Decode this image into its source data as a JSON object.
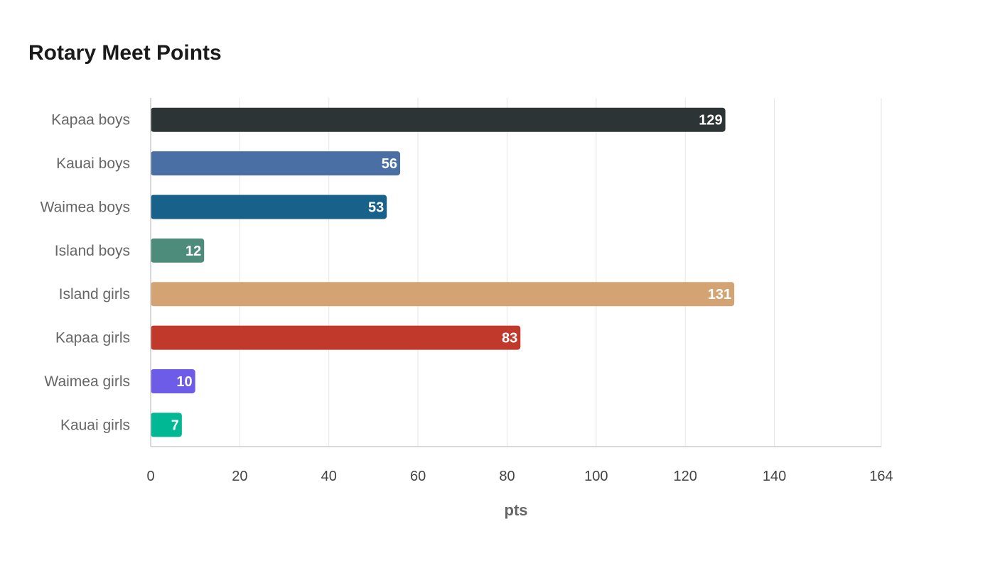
{
  "chart_data": {
    "type": "bar",
    "orientation": "horizontal",
    "title": "Rotary Meet Points",
    "xlabel": "pts",
    "ylabel": "",
    "categories": [
      "Kapaa boys",
      "Kauai boys",
      "Waimea boys",
      "Island boys",
      "Island girls",
      "Kapaa girls",
      "Waimea girls",
      "Kauai girls"
    ],
    "values": [
      129,
      56,
      53,
      12,
      131,
      83,
      10,
      7
    ],
    "colors": [
      "#2d3436",
      "#4a6fa5",
      "#17618a",
      "#4d8b7a",
      "#d4a373",
      "#c0392b",
      "#6c5ce7",
      "#00b894"
    ],
    "xlim": [
      0,
      164
    ],
    "xticks": [
      0,
      20,
      40,
      60,
      80,
      100,
      120,
      140,
      164
    ],
    "grid": true,
    "legend": "none"
  }
}
